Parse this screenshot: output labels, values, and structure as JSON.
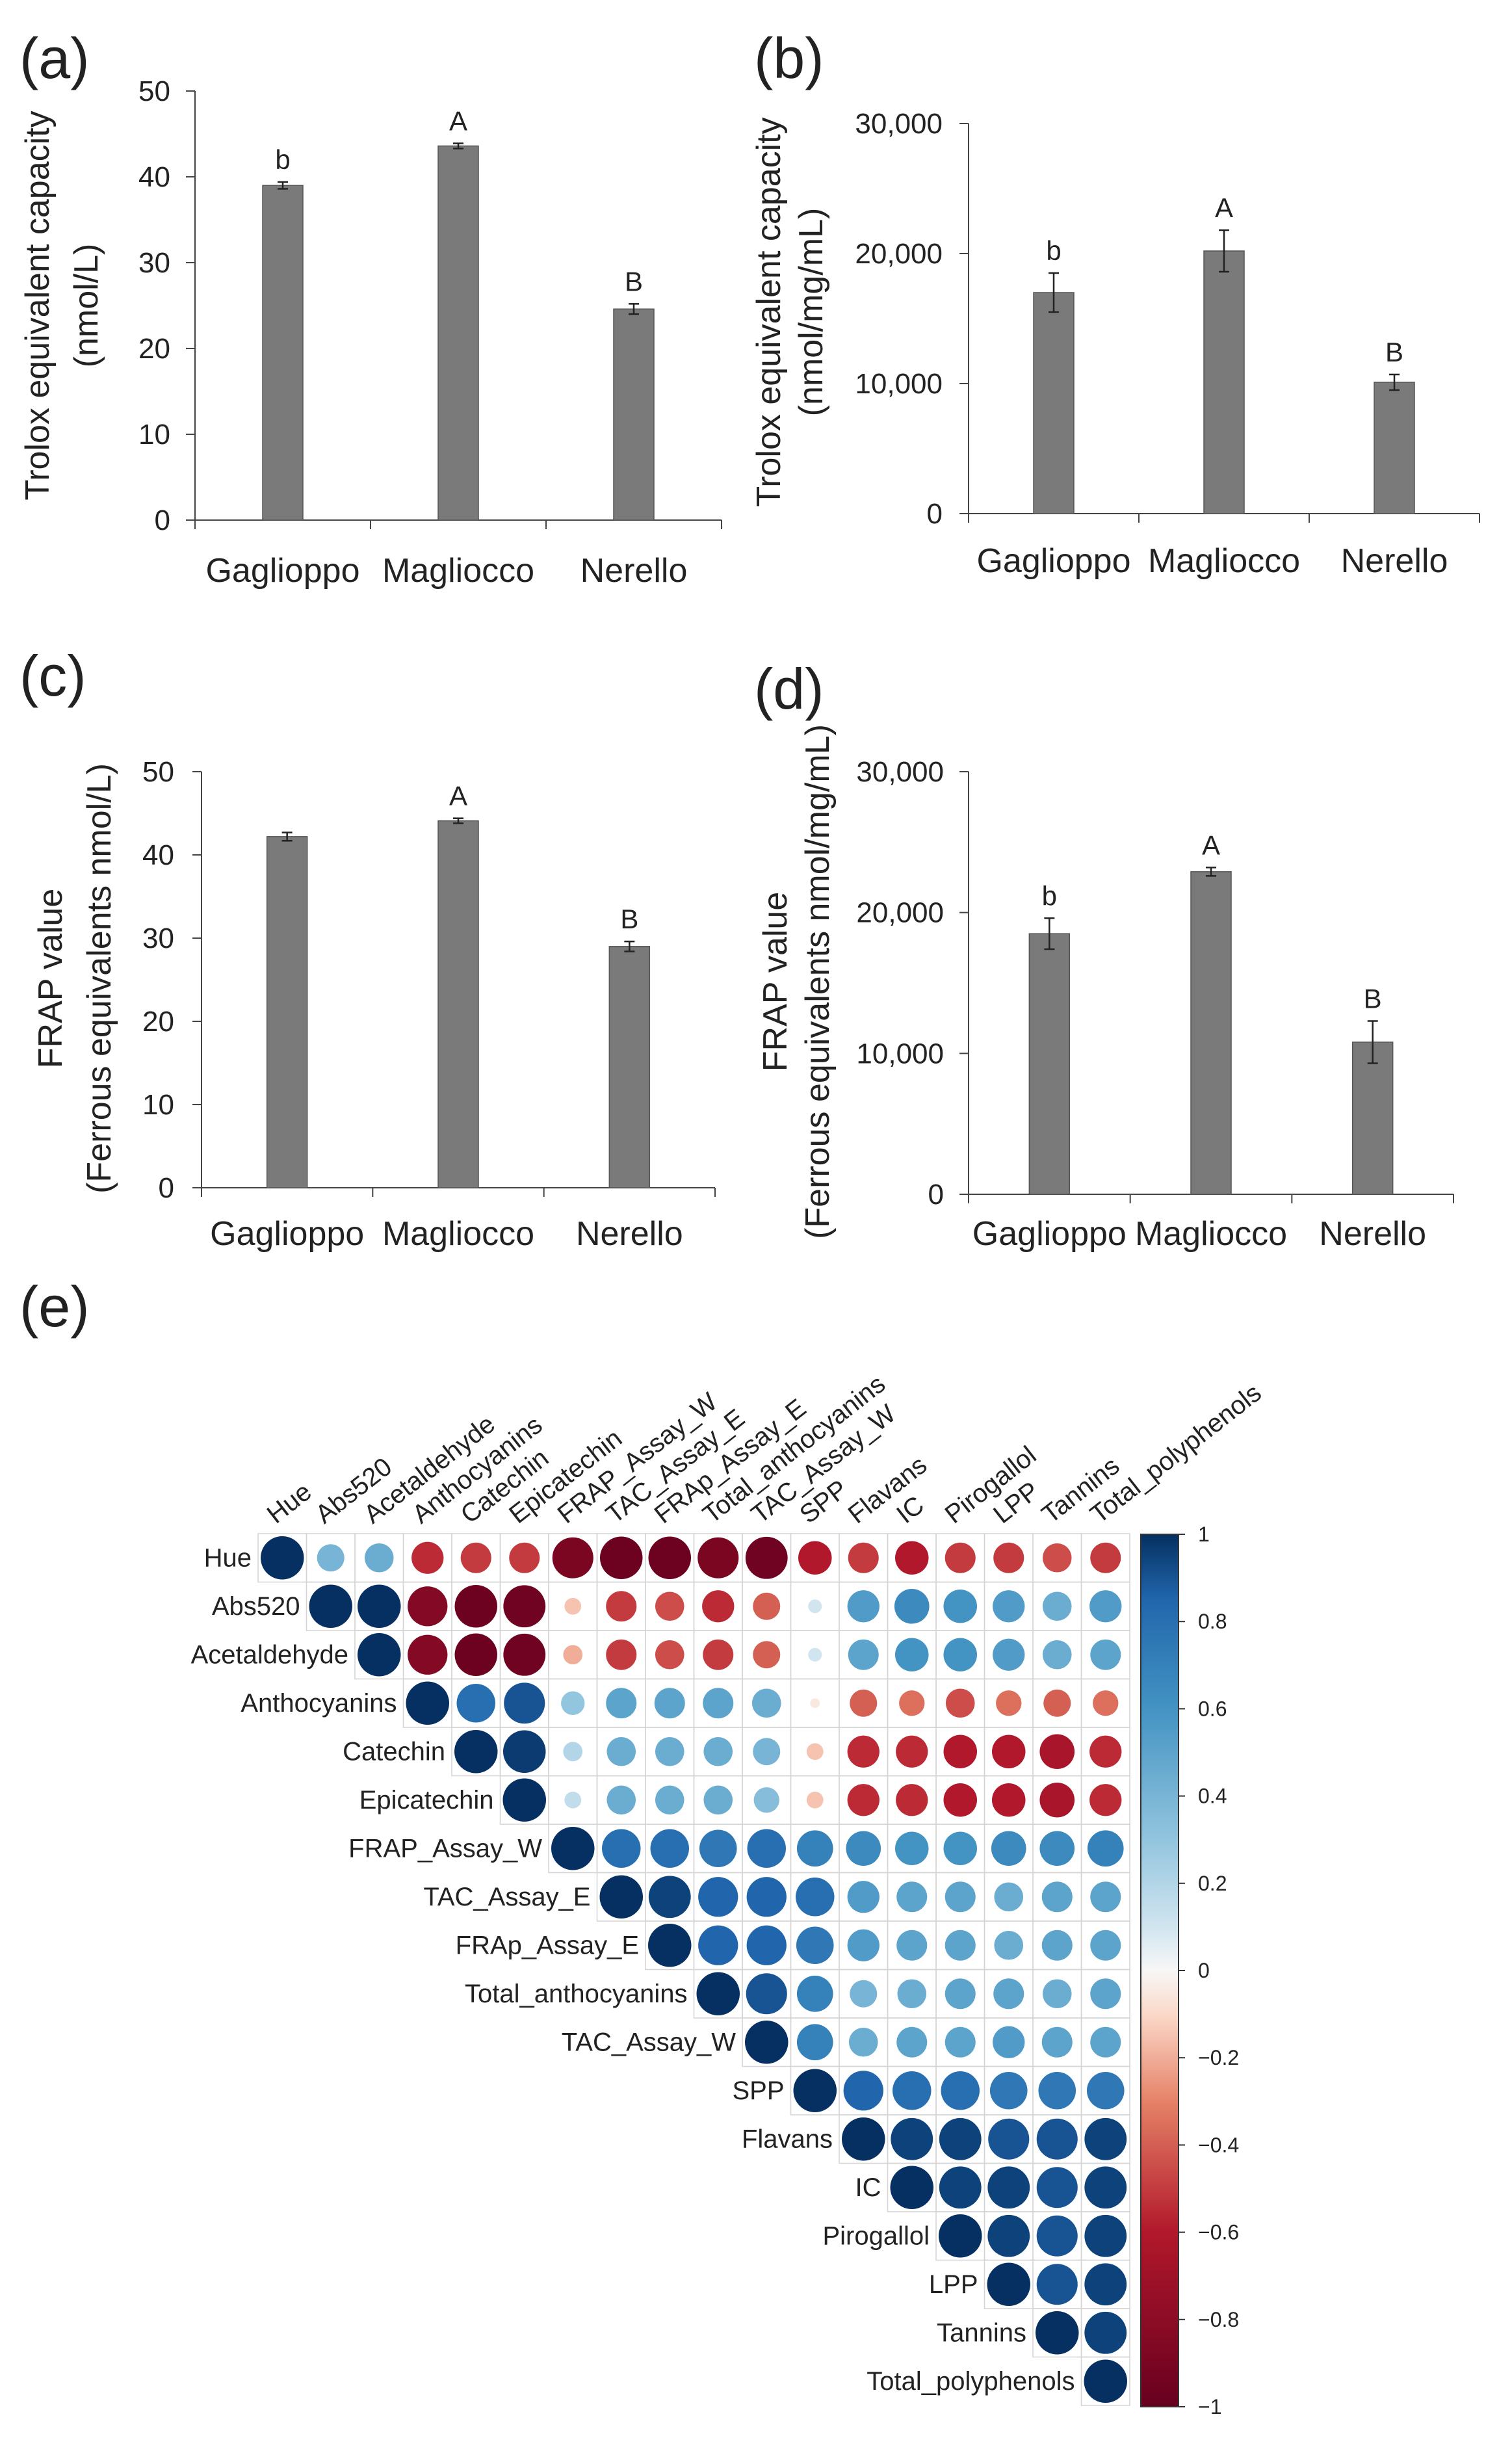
{
  "figure": {
    "panel_a": {
      "letter": "(a)"
    },
    "panel_b": {
      "letter": "(b)"
    },
    "panel_c": {
      "letter": "(c)"
    },
    "panel_d": {
      "letter": "(d)"
    },
    "panel_e": {
      "letter": "(e)"
    }
  },
  "colors": {
    "bar_fill": "#7a7a7a",
    "axis": "#444444",
    "neg_strong": "#67001f",
    "neutral": "#f7f7f7",
    "pos_strong": "#053061"
  },
  "chart_data": [
    {
      "id": "a",
      "type": "bar",
      "title": "",
      "categories": [
        "Gaglioppo",
        "Magliocco",
        "Nerello"
      ],
      "values": [
        39.0,
        43.6,
        24.6
      ],
      "errors": [
        0.4,
        0.3,
        0.6
      ],
      "significance": [
        "b",
        "A",
        "B"
      ],
      "ylabel": [
        "Trolox equivalent capacity",
        "(nmol/L)"
      ],
      "ylim": [
        0,
        50
      ],
      "yticks": [
        "0",
        "10",
        "20",
        "30",
        "40",
        "50"
      ],
      "ytick_values": [
        0,
        10,
        20,
        30,
        40,
        50
      ],
      "grid": false
    },
    {
      "id": "b",
      "type": "bar",
      "title": "",
      "categories": [
        "Gaglioppo",
        "Magliocco",
        "Nerello"
      ],
      "values": [
        17000,
        20200,
        10100
      ],
      "errors": [
        1500,
        1600,
        600
      ],
      "significance": [
        "b",
        "A",
        "B"
      ],
      "ylabel": [
        "Trolox equivalent capacity",
        "(nmol/mg/mL)"
      ],
      "ylim": [
        0,
        30000
      ],
      "yticks": [
        "0",
        "10,000",
        "20,000",
        "30,000"
      ],
      "ytick_values": [
        0,
        10000,
        20000,
        30000
      ],
      "grid": false
    },
    {
      "id": "c",
      "type": "bar",
      "title": "",
      "categories": [
        "Gaglioppo",
        "Magliocco",
        "Nerello"
      ],
      "values": [
        42.2,
        44.1,
        29.0
      ],
      "errors": [
        0.5,
        0.3,
        0.6
      ],
      "significance": [
        "",
        "A",
        "B"
      ],
      "ylabel": [
        "FRAP  value",
        "(Ferrous equivalents nmol/L)"
      ],
      "ylim": [
        0,
        50
      ],
      "yticks": [
        "0",
        "10",
        "20",
        "30",
        "40",
        "50"
      ],
      "ytick_values": [
        0,
        10,
        20,
        30,
        40,
        50
      ],
      "grid": false
    },
    {
      "id": "d",
      "type": "bar",
      "title": "",
      "categories": [
        "Gaglioppo",
        "Magliocco",
        "Nerello"
      ],
      "values": [
        18500,
        22900,
        10800
      ],
      "errors": [
        1100,
        300,
        1500
      ],
      "significance": [
        "b",
        "A",
        "B"
      ],
      "ylabel": [
        "FRAP  value",
        "(Ferrous equivalents nmol/mg/mL)"
      ],
      "ylim": [
        0,
        30000
      ],
      "yticks": [
        "0",
        "10,000",
        "20,000",
        "30,000"
      ],
      "ytick_values": [
        0,
        10000,
        20000,
        30000
      ],
      "grid": false
    },
    {
      "id": "e",
      "type": "heatmap",
      "title": "",
      "variables": [
        "Hue",
        "Abs520",
        "Acetaldehyde",
        "Anthocyanins",
        "Catechin",
        "Epicatechin",
        "FRAP_Assay_W",
        "TAC_Assay_E",
        "FRAp_Assay_E",
        "Total_anthocyanins",
        "TAC_Assay_W",
        "SPP",
        "Flavans",
        "IC",
        "Pirogallol",
        "LPP",
        "Tannins",
        "Total_polyphenols"
      ],
      "upper_triangle_rows": [
        [
          1.0,
          0.4,
          0.45,
          -0.55,
          -0.5,
          -0.5,
          -0.9,
          -0.97,
          -0.97,
          -0.9,
          -0.95,
          -0.6,
          -0.5,
          -0.6,
          -0.5,
          -0.5,
          -0.45,
          -0.5
        ],
        [
          1.0,
          1.0,
          -0.85,
          -0.97,
          -0.95,
          -0.15,
          -0.5,
          -0.45,
          -0.55,
          -0.4,
          0.1,
          0.55,
          0.65,
          0.6,
          0.55,
          0.45,
          0.55
        ],
        [
          1.0,
          -0.85,
          -0.97,
          -0.95,
          -0.2,
          -0.5,
          -0.45,
          -0.5,
          -0.4,
          0.1,
          0.5,
          0.6,
          0.6,
          0.55,
          0.45,
          0.5
        ],
        [
          1.0,
          0.8,
          0.9,
          0.3,
          0.5,
          0.5,
          0.5,
          0.45,
          -0.05,
          -0.4,
          -0.35,
          -0.45,
          -0.35,
          -0.4,
          -0.35
        ],
        [
          1.0,
          0.97,
          0.2,
          0.45,
          0.45,
          0.45,
          0.4,
          -0.15,
          -0.55,
          -0.55,
          -0.6,
          -0.6,
          -0.65,
          -0.55
        ],
        [
          1.0,
          0.15,
          0.45,
          0.45,
          0.45,
          0.35,
          -0.15,
          -0.55,
          -0.55,
          -0.6,
          -0.6,
          -0.65,
          -0.55
        ],
        [
          1.0,
          0.8,
          0.8,
          0.75,
          0.8,
          0.7,
          0.65,
          0.6,
          0.6,
          0.65,
          0.65,
          0.7
        ],
        [
          1.0,
          0.95,
          0.85,
          0.85,
          0.8,
          0.55,
          0.5,
          0.5,
          0.45,
          0.5,
          0.5
        ],
        [
          1.0,
          0.85,
          0.85,
          0.75,
          0.55,
          0.5,
          0.5,
          0.45,
          0.5,
          0.5
        ],
        [
          1.0,
          0.9,
          0.7,
          0.4,
          0.45,
          0.5,
          0.5,
          0.45,
          0.5
        ],
        [
          1.0,
          0.7,
          0.45,
          0.5,
          0.5,
          0.55,
          0.5,
          0.5
        ],
        [
          1.0,
          0.85,
          0.8,
          0.8,
          0.75,
          0.75,
          0.75
        ],
        [
          1.0,
          0.95,
          0.95,
          0.9,
          0.9,
          0.95
        ],
        [
          1.0,
          0.95,
          0.95,
          0.9,
          0.95
        ],
        [
          1.0,
          0.95,
          0.9,
          0.95
        ],
        [
          1.0,
          0.9,
          0.95
        ],
        [
          1.0,
          0.95
        ],
        [
          1.0
        ]
      ],
      "colorbar_ticks": [
        "1",
        "0.8",
        "0.6",
        "0.4",
        "0.2",
        "0",
        "−0.2",
        "−0.4",
        "−0.6",
        "−0.8",
        "−1"
      ],
      "colorbar_tick_values": [
        1,
        0.8,
        0.6,
        0.4,
        0.2,
        0,
        -0.2,
        -0.4,
        -0.6,
        -0.8,
        -1
      ],
      "colorbar_range": [
        -1,
        1
      ],
      "legend": "colorbar-right"
    }
  ]
}
